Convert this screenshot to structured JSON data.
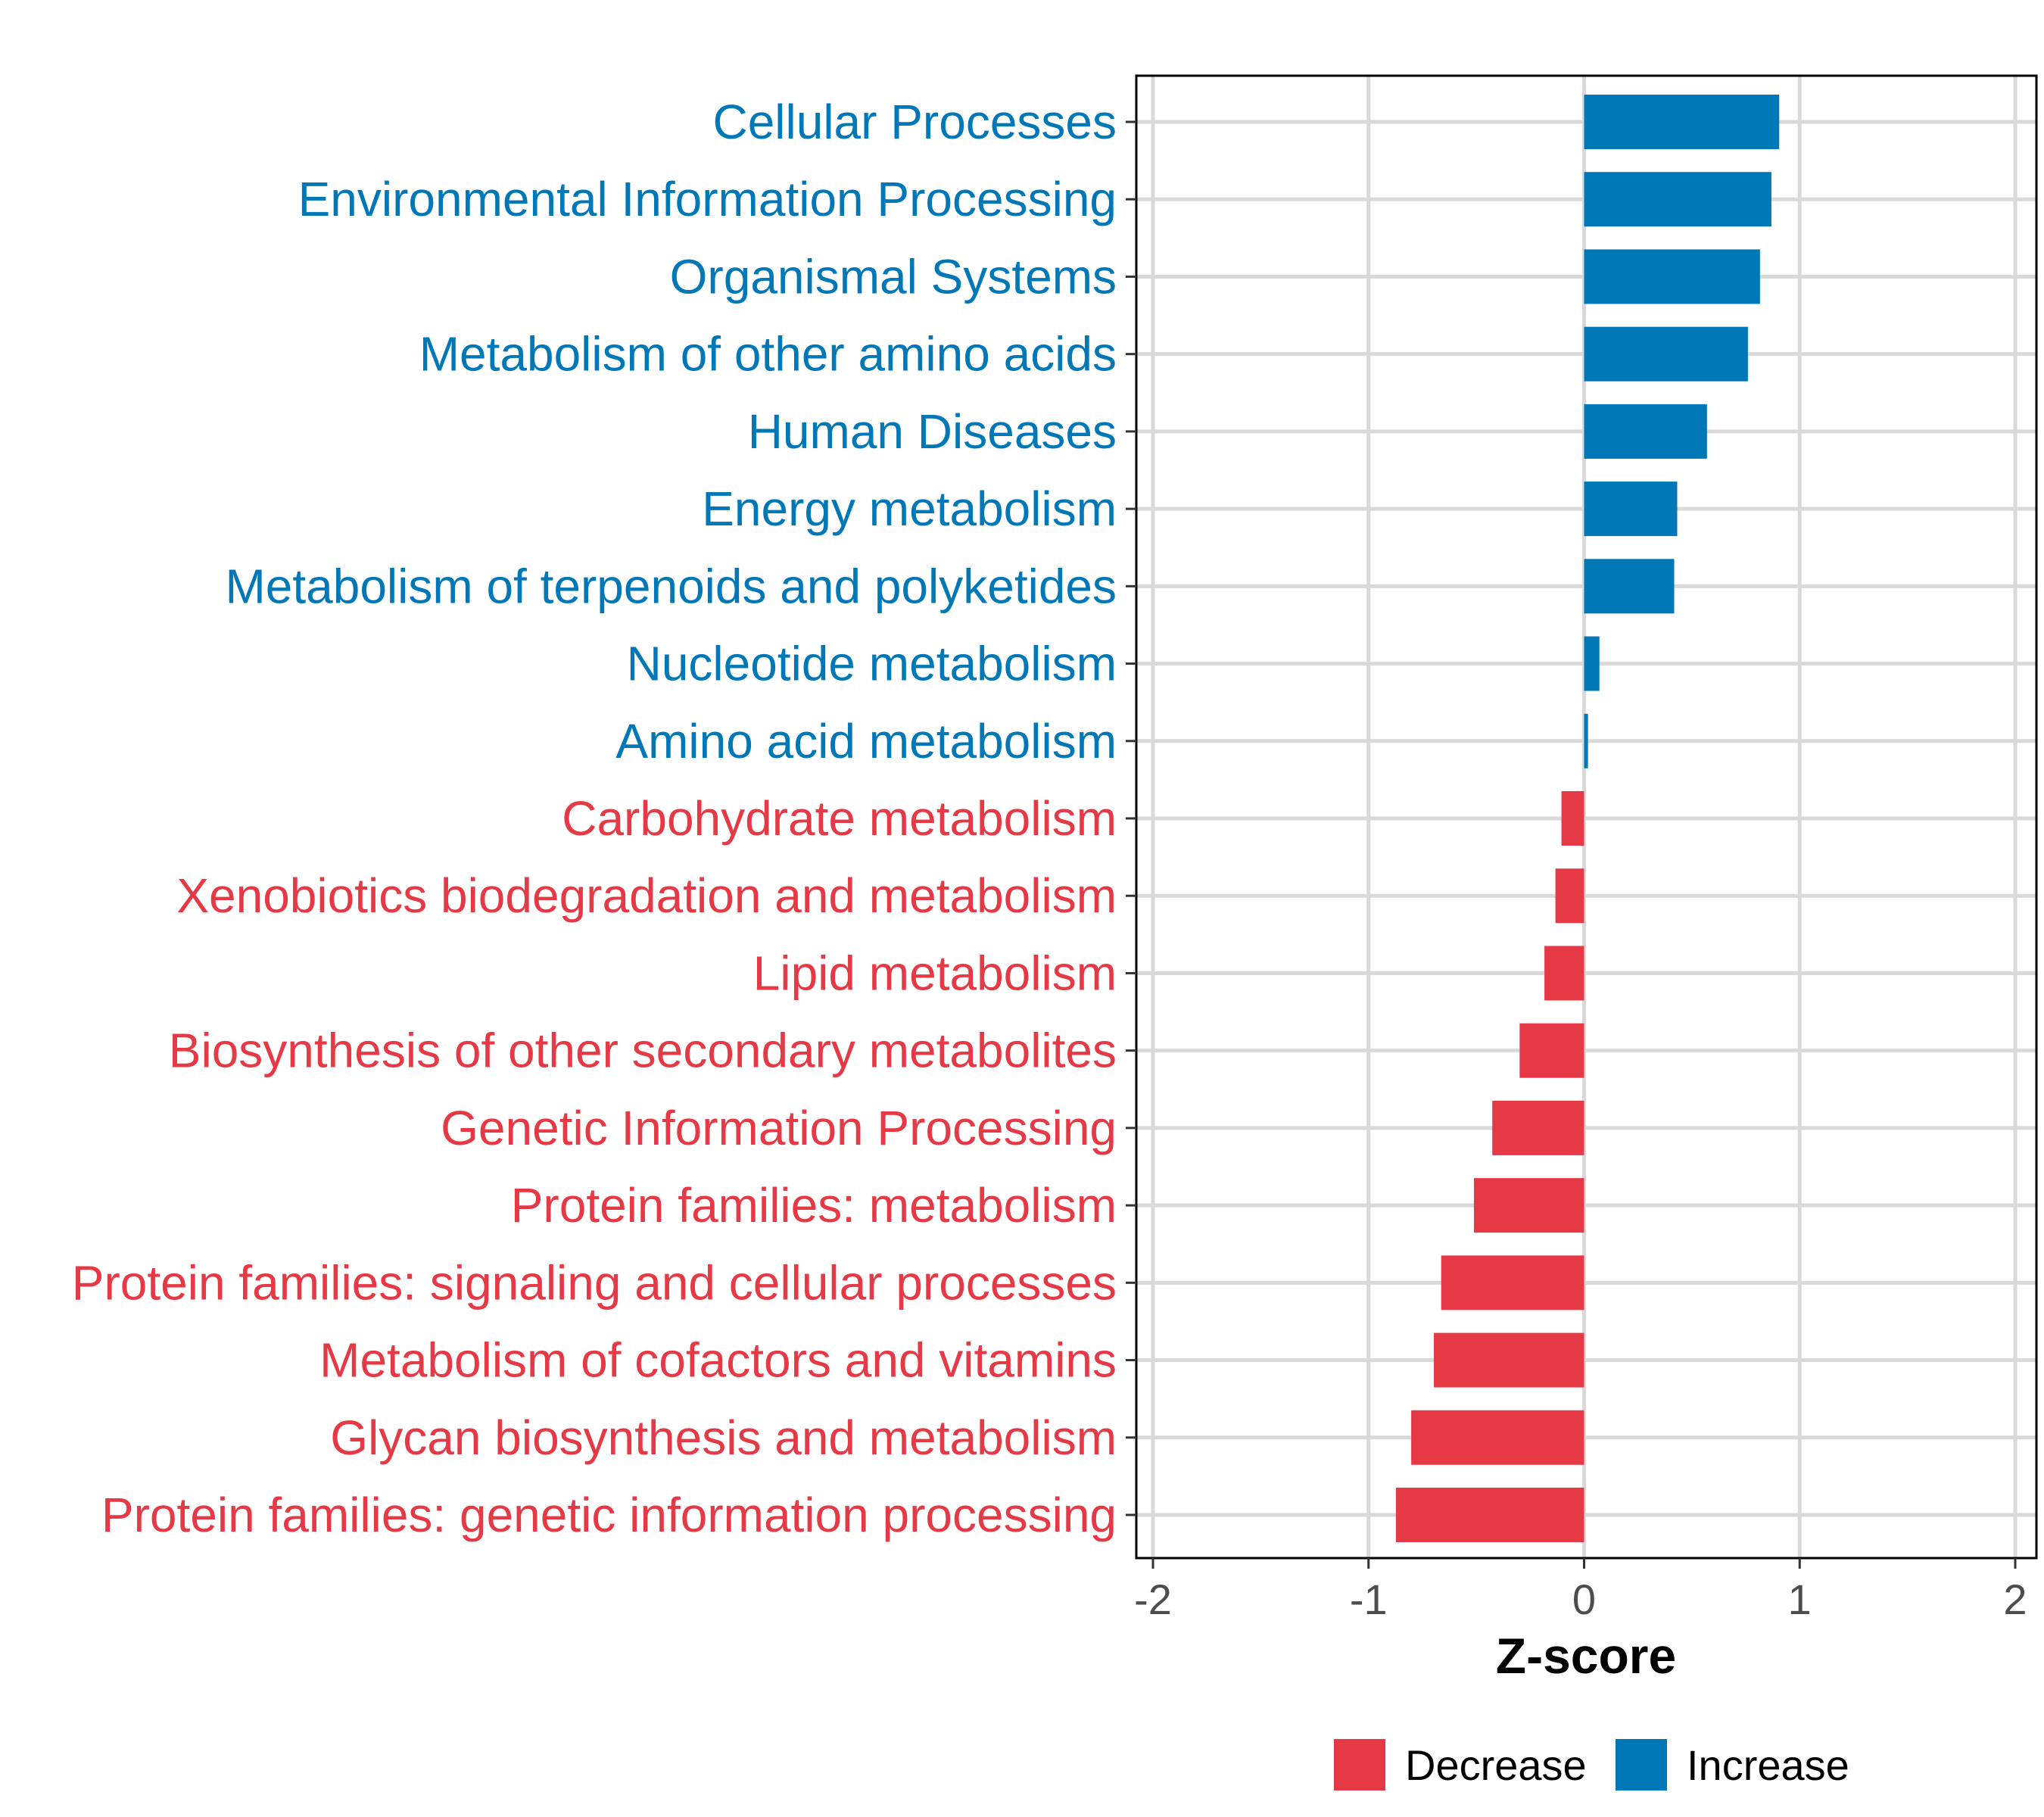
{
  "chart_data": {
    "type": "bar",
    "orientation": "horizontal",
    "title": "",
    "xlabel": "Z-score",
    "ylabel": "",
    "xlim": [
      -2.1,
      2.1
    ],
    "xticks": [
      -2,
      -1,
      0,
      1,
      2
    ],
    "xtick_labels": [
      "-2",
      "-1",
      "0",
      "1",
      "2"
    ],
    "grid": true,
    "legend_position": "bottom",
    "legend": [
      {
        "label": "Decrease",
        "color": "#E63946"
      },
      {
        "label": "Increase",
        "color": "#0077B6"
      }
    ],
    "categories": [
      "Cellular Processes",
      "Environmental Information Processing",
      "Organismal Systems",
      "Metabolism of other amino acids",
      "Human Diseases",
      "Energy metabolism",
      "Metabolism of terpenoids and polyketides",
      "Nucleotide metabolism",
      "Amino acid metabolism",
      "Carbohydrate metabolism",
      "Xenobiotics biodegradation and metabolism",
      "Lipid metabolism",
      "Biosynthesis of other secondary metabolites",
      "Genetic Information Processing",
      "Protein families: metabolism",
      "Protein families: signaling and cellular processes",
      "Metabolism of cofactors and vitamins",
      "Glycan biosynthesis and metabolism",
      "Protein families: genetic information processing"
    ],
    "values": [
      0.905,
      0.869,
      0.816,
      0.76,
      0.57,
      0.432,
      0.418,
      0.071,
      0.018,
      -0.105,
      -0.133,
      -0.184,
      -0.299,
      -0.426,
      -0.511,
      -0.663,
      -0.697,
      -0.802,
      -0.873
    ]
  }
}
